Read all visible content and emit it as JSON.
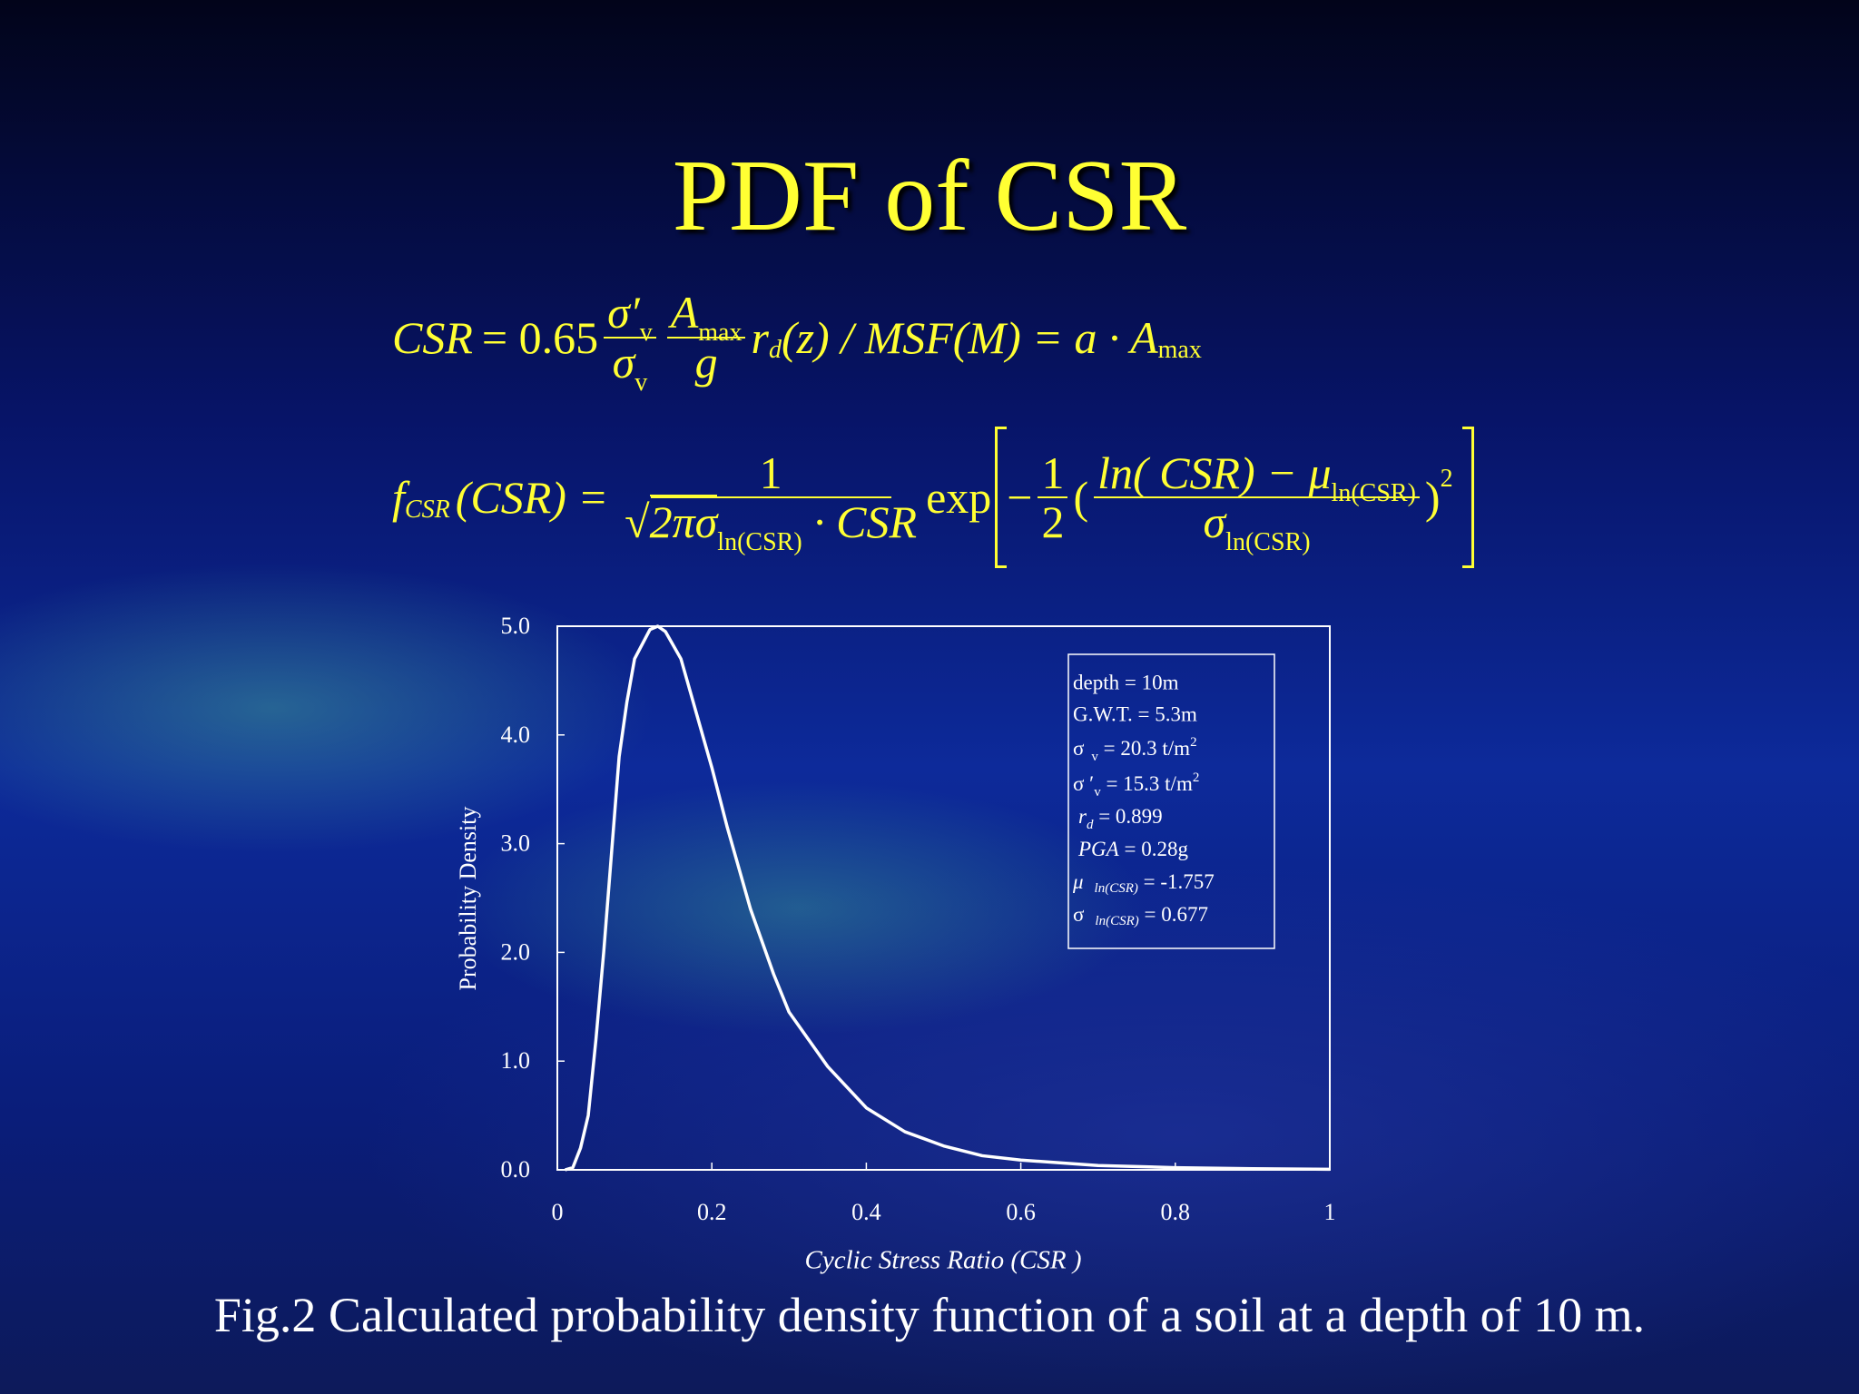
{
  "slide": {
    "title": "PDF of CSR",
    "equations": [
      [
        "CSR",
        "= 0.65",
        "σ′",
        "v",
        "σ",
        "v",
        "A",
        "max",
        "g",
        "r",
        "d",
        "(z) / MSF(M) = a · A",
        "max"
      ],
      [
        "f",
        "CSR",
        "(CSR) =",
        "1",
        "√",
        "2πσ",
        "ln(CSR)",
        " · CSR",
        "exp",
        "−",
        "1",
        "2",
        "(",
        "ln( CSR) − μ",
        "ln(CSR)",
        "σ",
        "ln(CSR)",
        ")",
        "2"
      ]
    ],
    "caption": "Fig.2  Calculated probability density function of a soil at a depth of 10 m."
  },
  "chart_data": {
    "type": "line",
    "xlabel": "Cyclic Stress Ratio  (CSR )",
    "ylabel": "Probability Density",
    "x": [
      0.01,
      0.02,
      0.03,
      0.04,
      0.05,
      0.06,
      0.07,
      0.08,
      0.09,
      0.1,
      0.12,
      0.13,
      0.14,
      0.16,
      0.18,
      0.2,
      0.22,
      0.25,
      0.28,
      0.3,
      0.35,
      0.4,
      0.45,
      0.5,
      0.55,
      0.6,
      0.7,
      0.8,
      0.9,
      1
    ],
    "values": [
      0,
      0.02,
      0.2,
      0.5,
      1.2,
      2.0,
      2.9,
      3.8,
      4.3,
      4.7,
      4.97,
      5.0,
      4.95,
      4.7,
      4.2,
      3.7,
      3.15,
      2.4,
      1.8,
      1.45,
      0.95,
      0.57,
      0.35,
      0.22,
      0.13,
      0.09,
      0.04,
      0.02,
      0.01,
      0.005
    ],
    "color": "#ffffff",
    "xlim": [
      0,
      1
    ],
    "ylim": [
      0,
      5
    ],
    "xticks": [
      0,
      0.2,
      0.4,
      0.6,
      0.8,
      1
    ],
    "yticks": [
      {
        "value": 0,
        "label": "0.0"
      },
      {
        "value": 1,
        "label": "1.0"
      },
      {
        "value": 2,
        "label": "2.0"
      },
      {
        "value": 3,
        "label": "3.0"
      },
      {
        "value": 4,
        "label": "4.0"
      },
      {
        "value": 5,
        "label": "5.0"
      }
    ],
    "annotation_lines": [
      [
        "depth = 10m"
      ],
      [
        "G.W.T. = 5.3m"
      ],
      [
        "σ",
        "v",
        " = 20.3 t/m",
        "2"
      ],
      [
        "σ  ′",
        "v",
        " = 15.3 t/m",
        "2"
      ],
      [
        "r",
        "d",
        " = 0.899"
      ],
      [
        "PGA",
        " = 0.28g"
      ],
      [
        "μ",
        "ln(CSR)",
        " = -1.757"
      ],
      [
        "σ",
        "ln(CSR)",
        " = 0.677"
      ]
    ]
  }
}
